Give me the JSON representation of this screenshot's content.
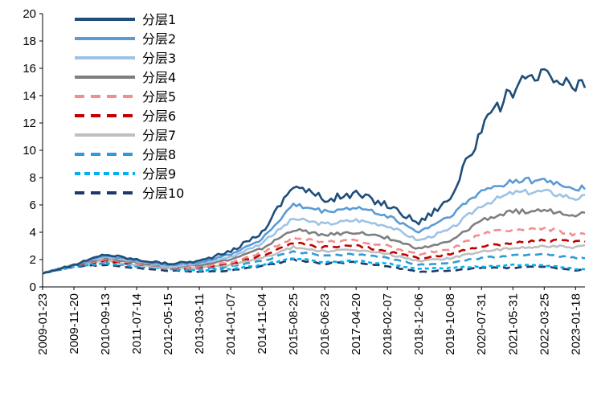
{
  "chart_data": {
    "type": "line",
    "title": "",
    "xlabel": "",
    "ylabel": "",
    "ylim": [
      0,
      20
    ],
    "yticks": [
      0,
      2,
      4,
      6,
      8,
      10,
      12,
      14,
      16,
      18,
      20
    ],
    "grid": false,
    "legend_position": "top-left",
    "x_tick_labels": [
      "2009-01-23",
      "2009-11-20",
      "2010-09-13",
      "2011-07-14",
      "2012-05-15",
      "2013-03-11",
      "2014-01-07",
      "2014-11-04",
      "2015-08-25",
      "2016-06-23",
      "2017-04-20",
      "2018-02-07",
      "2018-12-06",
      "2019-10-08",
      "2020-07-31",
      "2021-05-31",
      "2022-03-25",
      "2023-01-18"
    ],
    "x_index": [
      0,
      10,
      20,
      30,
      40,
      50,
      60,
      70,
      80,
      90,
      100,
      110,
      120,
      130,
      140,
      150,
      160,
      170,
      173
    ],
    "series": [
      {
        "name": "分层1",
        "color": "#1f4e79",
        "dash": "solid",
        "values": [
          1.0,
          1.6,
          2.4,
          2.0,
          1.7,
          1.9,
          2.6,
          4.0,
          7.5,
          6.4,
          6.8,
          6.0,
          4.7,
          6.5,
          11.5,
          14.5,
          15.5,
          14.5,
          14.7
        ]
      },
      {
        "name": "分层2",
        "color": "#5b9bd5",
        "dash": "solid",
        "values": [
          1.0,
          1.6,
          2.3,
          1.9,
          1.6,
          1.8,
          2.4,
          3.5,
          6.0,
          5.5,
          5.8,
          5.2,
          4.0,
          5.2,
          7.0,
          7.8,
          7.8,
          7.2,
          7.3
        ]
      },
      {
        "name": "分层3",
        "color": "#9dc3e6",
        "dash": "solid",
        "values": [
          1.0,
          1.6,
          2.2,
          1.9,
          1.5,
          1.7,
          2.2,
          3.2,
          5.0,
          4.6,
          4.9,
          4.5,
          3.4,
          4.2,
          6.0,
          6.9,
          7.0,
          6.5,
          6.6
        ]
      },
      {
        "name": "分层4",
        "color": "#7f7f7f",
        "dash": "solid",
        "values": [
          1.0,
          1.6,
          2.1,
          1.8,
          1.5,
          1.6,
          2.0,
          2.8,
          4.2,
          3.8,
          4.0,
          3.6,
          2.8,
          3.3,
          4.9,
          5.5,
          5.6,
          5.3,
          5.4
        ]
      },
      {
        "name": "分层5",
        "color": "#f28e8e",
        "dash": "dashed",
        "values": [
          1.0,
          1.6,
          2.0,
          1.7,
          1.4,
          1.5,
          1.8,
          2.5,
          3.6,
          3.3,
          3.4,
          3.0,
          2.4,
          2.7,
          3.9,
          4.2,
          4.3,
          3.8,
          3.9
        ]
      },
      {
        "name": "分层6",
        "color": "#c00000",
        "dash": "dashed",
        "values": [
          1.0,
          1.6,
          1.9,
          1.7,
          1.4,
          1.4,
          1.7,
          2.3,
          3.2,
          2.9,
          3.0,
          2.6,
          2.1,
          2.4,
          3.0,
          3.2,
          3.4,
          3.3,
          3.4
        ]
      },
      {
        "name": "分层7",
        "color": "#bfbfbf",
        "dash": "solid",
        "values": [
          1.0,
          1.6,
          1.9,
          1.6,
          1.4,
          1.4,
          1.6,
          2.1,
          2.9,
          2.6,
          2.7,
          2.4,
          1.9,
          2.1,
          2.6,
          2.8,
          3.0,
          2.9,
          3.0
        ]
      },
      {
        "name": "分层8",
        "color": "#2e9bd6",
        "dash": "dashed",
        "values": [
          1.0,
          1.6,
          1.8,
          1.6,
          1.3,
          1.3,
          1.5,
          1.9,
          2.6,
          2.3,
          2.4,
          2.1,
          1.6,
          1.8,
          2.1,
          2.3,
          2.4,
          2.1,
          2.1
        ]
      },
      {
        "name": "分层9",
        "color": "#00b0f0",
        "dash": "dotted",
        "values": [
          1.0,
          1.5,
          1.7,
          1.5,
          1.3,
          1.2,
          1.3,
          1.6,
          2.1,
          1.8,
          1.9,
          1.7,
          1.3,
          1.4,
          1.5,
          1.6,
          1.6,
          1.3,
          1.3
        ]
      },
      {
        "name": "分层10",
        "color": "#203864",
        "dash": "dashed",
        "values": [
          1.0,
          1.5,
          1.6,
          1.4,
          1.2,
          1.1,
          1.2,
          1.5,
          2.0,
          1.7,
          1.8,
          1.5,
          1.1,
          1.2,
          1.4,
          1.4,
          1.5,
          1.2,
          1.3
        ]
      }
    ]
  }
}
